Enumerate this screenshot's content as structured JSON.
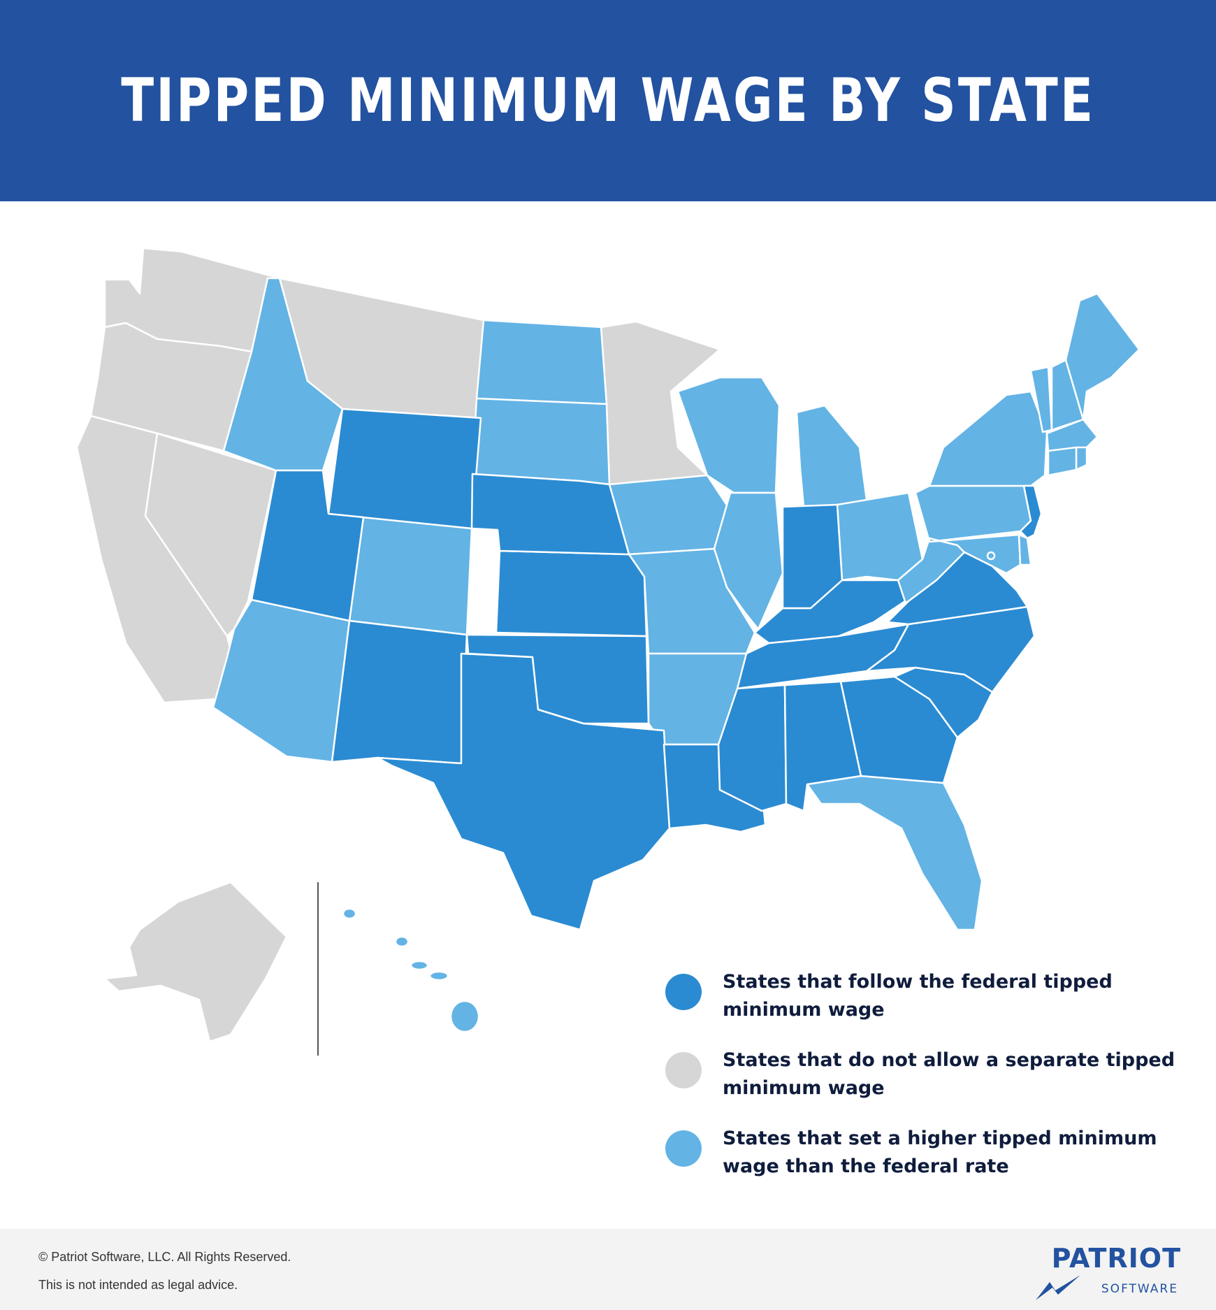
{
  "title": "TIPPED MINIMUM WAGE BY STATE",
  "colors": {
    "banner": "#2252a0",
    "federal": "#2a8bd2",
    "no_separate": "#d6d6d6",
    "higher": "#63b3e5",
    "border": "#ffffff"
  },
  "legend": [
    {
      "category": "federal",
      "label": "States that follow the federal tipped minimum wage"
    },
    {
      "category": "no_separate",
      "label": "States that do not allow a separate tipped minimum wage"
    },
    {
      "category": "higher",
      "label": "States that set a higher tipped minimum wage than the federal rate"
    }
  ],
  "states": {
    "WA": "no_separate",
    "OR": "no_separate",
    "CA": "no_separate",
    "NV": "no_separate",
    "MT": "no_separate",
    "MN": "no_separate",
    "AK": "no_separate",
    "ID": "higher",
    "AZ": "higher",
    "CO": "higher",
    "ND": "higher",
    "SD": "higher",
    "IA": "higher",
    "MO": "higher",
    "AR": "higher",
    "WI": "higher",
    "IL": "higher",
    "MI": "higher",
    "OH": "higher",
    "WV": "higher",
    "PA": "higher",
    "NY": "higher",
    "VT": "higher",
    "NH": "higher",
    "ME": "higher",
    "MA": "higher",
    "RI": "higher",
    "CT": "higher",
    "MD": "higher",
    "DE": "higher",
    "DC": "higher",
    "FL": "higher",
    "HI": "higher",
    "WY": "federal",
    "UT": "federal",
    "NM": "federal",
    "TX": "federal",
    "OK": "federal",
    "KS": "federal",
    "NE": "federal",
    "LA": "federal",
    "MS": "federal",
    "AL": "federal",
    "GA": "federal",
    "SC": "federal",
    "NC": "federal",
    "TN": "federal",
    "KY": "federal",
    "IN": "federal",
    "VA": "federal",
    "NJ": "federal"
  },
  "footer": {
    "copyright": "© Patriot Software, LLC. All Rights Reserved.",
    "disclaimer": "This is not intended as legal advice."
  },
  "logo": {
    "name": "PATRIOT",
    "sub": "SOFTWARE"
  }
}
